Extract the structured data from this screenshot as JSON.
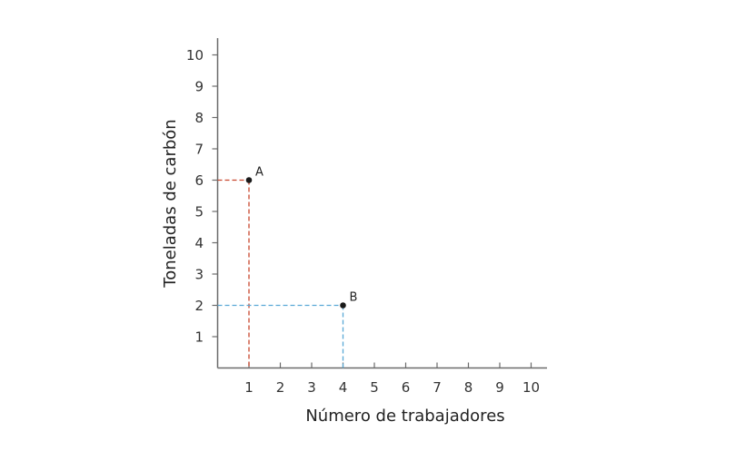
{
  "chart_data": {
    "type": "scatter",
    "title": "",
    "xlabel": "Número de trabajadores",
    "ylabel": "Toneladas de carbón",
    "xlim": [
      0,
      10.5
    ],
    "ylim": [
      0,
      10.5
    ],
    "x_ticks": [
      1,
      2,
      3,
      4,
      5,
      6,
      7,
      8,
      9,
      10
    ],
    "y_ticks": [
      1,
      2,
      3,
      4,
      5,
      6,
      7,
      8,
      9,
      10
    ],
    "grid": false,
    "legend": null,
    "points": [
      {
        "label": "A",
        "x": 1,
        "y": 6,
        "guide_color": "#c8452c"
      },
      {
        "label": "B",
        "x": 4,
        "y": 2,
        "guide_color": "#5aa9d6"
      }
    ],
    "annotations": [
      "A",
      "B"
    ]
  }
}
